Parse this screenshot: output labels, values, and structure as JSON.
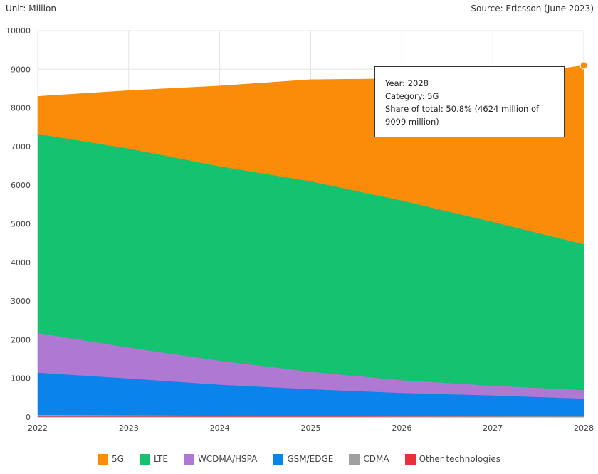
{
  "unit_text": "Unit: Million",
  "source_text": "Source: Ericsson (June 2023)",
  "tooltip": {
    "year_line": "Year: 2028",
    "category_line": "Category: 5G",
    "share_line": "Share of total: 50.8% (4624 million of 9099 million)"
  },
  "chart_data": {
    "type": "area",
    "stacked": true,
    "title": "",
    "xlabel": "",
    "ylabel": "",
    "x": [
      2022,
      2023,
      2024,
      2025,
      2026,
      2027,
      2028
    ],
    "ylim": [
      0,
      10000
    ],
    "yticks": [
      0,
      1000,
      2000,
      3000,
      4000,
      5000,
      6000,
      7000,
      8000,
      9000,
      10000
    ],
    "grid": true,
    "legend_position": "bottom",
    "series": [
      {
        "name": "Other technologies",
        "color": "#e8303a",
        "values": [
          40,
          35,
          30,
          25,
          20,
          18,
          15
        ]
      },
      {
        "name": "CDMA",
        "color": "#a0a0a0",
        "values": [
          20,
          15,
          10,
          8,
          6,
          4,
          3
        ]
      },
      {
        "name": "GSM/EDGE",
        "color": "#0a84ea",
        "values": [
          1090,
          950,
          800,
          690,
          600,
          540,
          462
        ]
      },
      {
        "name": "WCDMA/HSPA",
        "color": "#af78d2",
        "values": [
          1030,
          800,
          620,
          450,
          330,
          250,
          220
        ]
      },
      {
        "name": "LTE",
        "color": "#14c270",
        "values": [
          5150,
          5150,
          5030,
          4930,
          4650,
          4240,
          3775
        ]
      },
      {
        "name": "5G",
        "color": "#fb8c0a",
        "values": [
          970,
          1500,
          2080,
          2630,
          3150,
          3720,
          4624
        ]
      }
    ],
    "highlight": {
      "series": "5G",
      "x": 2028,
      "total": 9099
    }
  },
  "legend_items": [
    {
      "label": "5G",
      "color": "#fb8c0a"
    },
    {
      "label": "LTE",
      "color": "#14c270"
    },
    {
      "label": "WCDMA/HSPA",
      "color": "#af78d2"
    },
    {
      "label": "GSM/EDGE",
      "color": "#0a84ea"
    },
    {
      "label": "CDMA",
      "color": "#a0a0a0"
    },
    {
      "label": "Other technologies",
      "color": "#e8303a"
    }
  ]
}
